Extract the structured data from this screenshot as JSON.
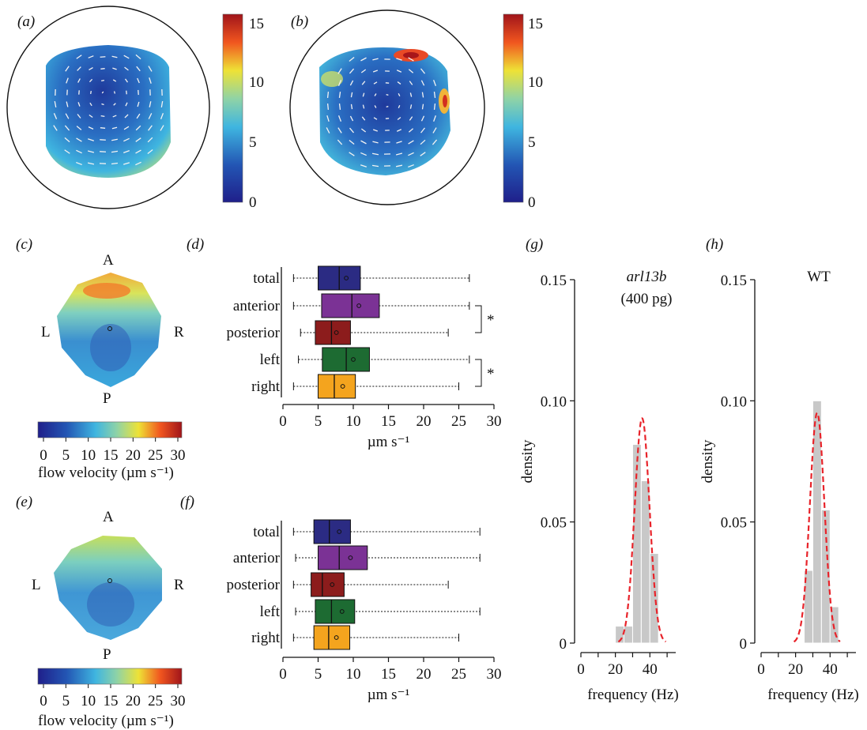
{
  "colors": {
    "total": "#2b2b83",
    "anterior": "#7b3295",
    "posterior": "#8c1c1c",
    "left": "#1d6b32",
    "right": "#f4a41e",
    "histogram": "#c8c8c8",
    "fit_line": "#e8232a"
  },
  "panels": {
    "a": {
      "label": "(a)",
      "colorbar_ticks": [
        "15",
        "10",
        "5",
        "0"
      ],
      "colorbar_range": [
        0,
        15
      ]
    },
    "b": {
      "label": "(b)",
      "colorbar_ticks": [
        "15",
        "10",
        "5",
        "0"
      ],
      "colorbar_range": [
        0,
        15
      ]
    },
    "c": {
      "label": "(c)",
      "orient": {
        "anterior": "A",
        "posterior": "P",
        "left": "L",
        "right": "R"
      },
      "colorbar_ticks": [
        "0",
        "5",
        "10",
        "15",
        "20",
        "25",
        "30"
      ],
      "colorbar_label": "flow velocity (µm s⁻¹)"
    },
    "e": {
      "label": "(e)",
      "orient": {
        "anterior": "A",
        "posterior": "P",
        "left": "L",
        "right": "R"
      },
      "colorbar_ticks": [
        "0",
        "5",
        "10",
        "15",
        "20",
        "25",
        "30"
      ],
      "colorbar_label": "flow velocity (µm s⁻¹)"
    },
    "d": {
      "label": "(d)"
    },
    "f": {
      "label": "(f)"
    },
    "g": {
      "label": "(g)"
    },
    "h": {
      "label": "(h)"
    }
  },
  "chart_data": [
    {
      "panel": "d",
      "type": "box",
      "categories": [
        "total",
        "anterior",
        "posterior",
        "left",
        "right"
      ],
      "series": [
        {
          "category": "total",
          "min": 1.5,
          "q1": 5.0,
          "median": 8.0,
          "q3": 11.0,
          "max": 26.5,
          "mean": 9.0
        },
        {
          "category": "anterior",
          "min": 1.5,
          "q1": 5.5,
          "median": 9.8,
          "q3": 13.7,
          "max": 26.5,
          "mean": 10.8
        },
        {
          "category": "posterior",
          "min": 2.5,
          "q1": 4.6,
          "median": 6.9,
          "q3": 9.6,
          "max": 23.5,
          "mean": 7.6
        },
        {
          "category": "left",
          "min": 2.2,
          "q1": 5.6,
          "median": 9.0,
          "q3": 12.3,
          "max": 26.5,
          "mean": 10.0
        },
        {
          "category": "right",
          "min": 1.5,
          "q1": 5.0,
          "median": 7.3,
          "q3": 10.3,
          "max": 25.0,
          "mean": 8.5
        }
      ],
      "xlim": [
        0,
        30
      ],
      "xticks": [
        "0",
        "5",
        "10",
        "15",
        "20",
        "25",
        "30"
      ],
      "xlabel": "µm s⁻¹",
      "annotations": [
        {
          "pair": [
            "anterior",
            "posterior"
          ],
          "text": "*"
        },
        {
          "pair": [
            "left",
            "right"
          ],
          "text": "*"
        }
      ]
    },
    {
      "panel": "f",
      "type": "box",
      "categories": [
        "total",
        "anterior",
        "posterior",
        "left",
        "right"
      ],
      "series": [
        {
          "category": "total",
          "min": 1.5,
          "q1": 4.4,
          "median": 6.6,
          "q3": 9.6,
          "max": 28.0,
          "mean": 8.0
        },
        {
          "category": "anterior",
          "min": 1.8,
          "q1": 5.0,
          "median": 8.0,
          "q3": 12.0,
          "max": 28.0,
          "mean": 9.6
        },
        {
          "category": "posterior",
          "min": 1.5,
          "q1": 4.0,
          "median": 5.6,
          "q3": 8.7,
          "max": 23.5,
          "mean": 7.0
        },
        {
          "category": "left",
          "min": 1.8,
          "q1": 4.6,
          "median": 6.9,
          "q3": 10.2,
          "max": 28.0,
          "mean": 8.4
        },
        {
          "category": "right",
          "min": 1.5,
          "q1": 4.4,
          "median": 6.5,
          "q3": 9.5,
          "max": 25.0,
          "mean": 7.6
        }
      ],
      "xlim": [
        0,
        30
      ],
      "xticks": [
        "0",
        "5",
        "10",
        "15",
        "20",
        "25",
        "30"
      ],
      "xlabel": "µm s⁻¹"
    },
    {
      "panel": "g",
      "type": "histogram",
      "title": "arl13b",
      "subtitle": "(400 pg)",
      "xlabel": "frequency (Hz)",
      "ylabel": "density",
      "xlim": [
        0,
        55
      ],
      "ylim": [
        0,
        0.15
      ],
      "xticks": [
        "0",
        "20",
        "40"
      ],
      "yticks": [
        "0",
        "0.05",
        "0.10",
        "0.15"
      ],
      "bins": [
        {
          "x0": 20,
          "x1": 25,
          "density": 0.007
        },
        {
          "x0": 25,
          "x1": 30,
          "density": 0.007
        },
        {
          "x0": 30,
          "x1": 35,
          "density": 0.082
        },
        {
          "x0": 35,
          "x1": 40,
          "density": 0.067
        },
        {
          "x0": 40,
          "x1": 45,
          "density": 0.037
        }
      ],
      "fit": {
        "type": "normal",
        "mean": 35.5,
        "sd": 4.3
      }
    },
    {
      "panel": "h",
      "type": "histogram",
      "title": "WT",
      "xlabel": "frequency (Hz)",
      "ylabel": "density",
      "xlim": [
        0,
        55
      ],
      "ylim": [
        0,
        0.15
      ],
      "xticks": [
        "0",
        "20",
        "40"
      ],
      "yticks": [
        "0",
        "0.05",
        "0.10",
        "0.15"
      ],
      "bins": [
        {
          "x0": 25,
          "x1": 30,
          "density": 0.03
        },
        {
          "x0": 30,
          "x1": 35,
          "density": 0.1
        },
        {
          "x0": 35,
          "x1": 40,
          "density": 0.055
        },
        {
          "x0": 40,
          "x1": 45,
          "density": 0.015
        }
      ],
      "fit": {
        "type": "normal",
        "mean": 32.5,
        "sd": 4.2
      }
    }
  ]
}
